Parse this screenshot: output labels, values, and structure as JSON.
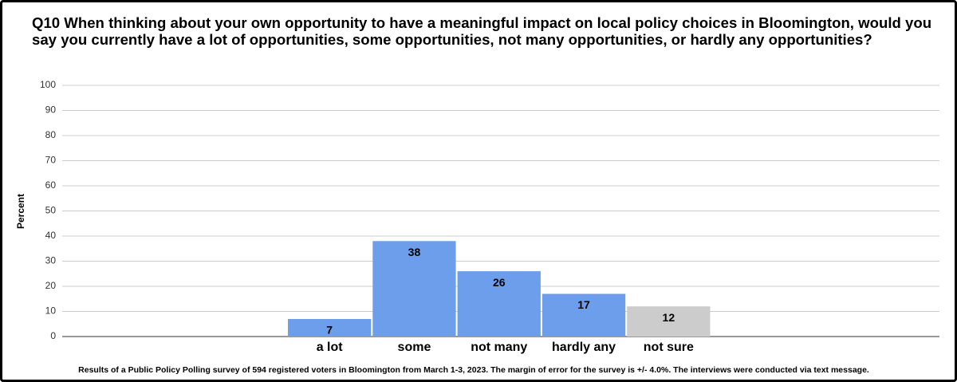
{
  "chart_data": {
    "type": "bar",
    "title": "Q10 When thinking about your own opportunity to have a meaningful impact on local policy choices in Bloomington, would you say you currently have a lot of opportunities, some opportunities, not many opportunities, or hardly any opportunities?",
    "y_label": "Percent",
    "categories": [
      "a lot",
      "some",
      "not many",
      "hardly any",
      "not sure"
    ],
    "values": [
      7,
      38,
      26,
      17,
      12
    ],
    "colors": [
      "#6d9eeb",
      "#6d9eeb",
      "#6d9eeb",
      "#6d9eeb",
      "#cccccc"
    ],
    "ylim": [
      0,
      100
    ],
    "yticks": [
      0,
      10,
      20,
      30,
      40,
      50,
      60,
      70,
      80,
      90,
      100
    ],
    "grid": true,
    "note": "Results of a Public Policy Polling survey of 594 registered voters in Bloomington from March 1-3, 2023. The margin of error for the survey is +/- 4.0%. The interviews were conducted via text message."
  }
}
